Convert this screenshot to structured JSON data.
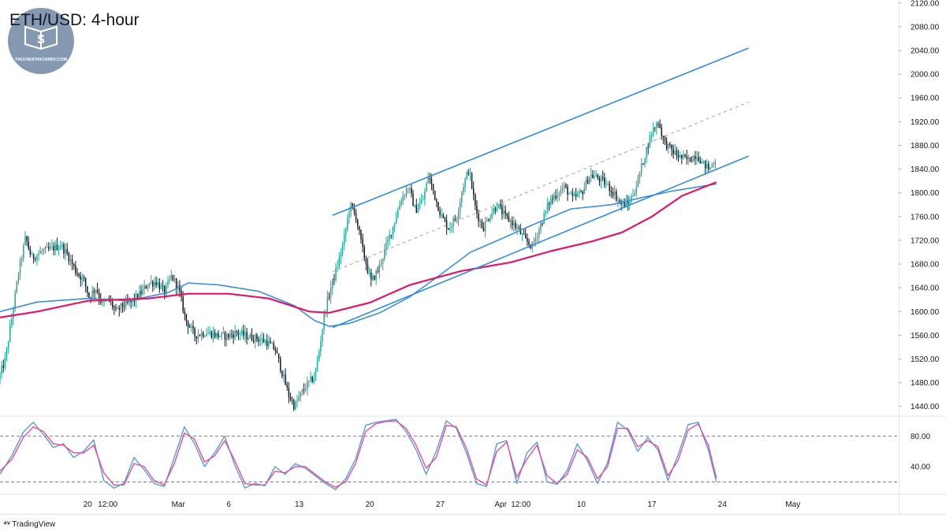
{
  "title": "ETH/USD: 4-hour",
  "watermark": "THUVIENTAICHINH.COM",
  "footer": "TradingView",
  "colors": {
    "bull": "#26a69a",
    "bear": "#131722",
    "ma_fast": "#3c8fd8",
    "ma_slow": "#e0156b",
    "channel": "#2f8be0",
    "stoch_k": "#5b9bd5",
    "stoch_d": "#e04f9c",
    "grid": "#e0e3eb"
  },
  "chart_data": [
    {
      "type": "candlestick",
      "title": "ETH/USD: 4-hour",
      "y_ticks": [
        "2120.00",
        "2080.00",
        "2040.00",
        "2000.00",
        "1960.00",
        "1920.00",
        "1880.00",
        "1840.00",
        "1800.00",
        "1760.00",
        "1720.00",
        "1680.00",
        "1640.00",
        "1600.00",
        "1560.00",
        "1520.00",
        "1480.00",
        "1440.00"
      ],
      "ylim": [
        1425,
        2125
      ],
      "x_ticks": [
        "20",
        "12:00",
        "Mar",
        "6",
        "13",
        "20",
        "27",
        "Apr",
        "12:00",
        "10",
        "17",
        "24",
        "May"
      ],
      "x_tick_days": [
        20,
        22,
        29,
        34,
        41,
        48,
        55,
        61,
        63,
        69,
        76,
        83,
        90
      ],
      "day_ref": "Feb 0",
      "xlim": [
        11.3,
        100.5
      ],
      "anchors": [
        [
          11.3,
          1485
        ],
        [
          12.0,
          1520
        ],
        [
          12.6,
          1585
        ],
        [
          13.3,
          1665
        ],
        [
          14.0,
          1725
        ],
        [
          14.6,
          1690
        ],
        [
          15.5,
          1700
        ],
        [
          16.5,
          1705
        ],
        [
          17.5,
          1712
        ],
        [
          18.2,
          1695
        ],
        [
          19.0,
          1668
        ],
        [
          19.8,
          1652
        ],
        [
          20.3,
          1625
        ],
        [
          21.0,
          1640
        ],
        [
          21.6,
          1612
        ],
        [
          22.3,
          1620
        ],
        [
          23.0,
          1598
        ],
        [
          23.6,
          1610
        ],
        [
          24.5,
          1615
        ],
        [
          25.5,
          1632
        ],
        [
          26.2,
          1648
        ],
        [
          27.0,
          1650
        ],
        [
          27.8,
          1632
        ],
        [
          28.5,
          1660
        ],
        [
          29.2,
          1638
        ],
        [
          29.9,
          1586
        ],
        [
          30.8,
          1560
        ],
        [
          32.0,
          1565
        ],
        [
          33.0,
          1560
        ],
        [
          34.0,
          1558
        ],
        [
          35.0,
          1565
        ],
        [
          36.0,
          1558
        ],
        [
          37.0,
          1555
        ],
        [
          38.0,
          1548
        ],
        [
          38.8,
          1535
        ],
        [
          39.5,
          1495
        ],
        [
          40.1,
          1460
        ],
        [
          40.7,
          1440
        ],
        [
          41.3,
          1460
        ],
        [
          42.0,
          1478
        ],
        [
          42.7,
          1490
        ],
        [
          43.2,
          1540
        ],
        [
          43.7,
          1600
        ],
        [
          44.3,
          1640
        ],
        [
          45.0,
          1680
        ],
        [
          45.6,
          1720
        ],
        [
          46.2,
          1780
        ],
        [
          46.8,
          1760
        ],
        [
          47.5,
          1700
        ],
        [
          48.3,
          1650
        ],
        [
          49.0,
          1670
        ],
        [
          49.6,
          1700
        ],
        [
          50.5,
          1745
        ],
        [
          51.3,
          1790
        ],
        [
          52.0,
          1810
        ],
        [
          52.7,
          1770
        ],
        [
          53.5,
          1790
        ],
        [
          54.0,
          1830
        ],
        [
          54.7,
          1790
        ],
        [
          55.3,
          1760
        ],
        [
          56.0,
          1740
        ],
        [
          56.8,
          1760
        ],
        [
          57.4,
          1810
        ],
        [
          58.0,
          1840
        ],
        [
          58.7,
          1770
        ],
        [
          59.4,
          1740
        ],
        [
          60.0,
          1760
        ],
        [
          60.8,
          1780
        ],
        [
          61.6,
          1760
        ],
        [
          62.3,
          1750
        ],
        [
          63.0,
          1735
        ],
        [
          63.6,
          1720
        ],
        [
          64.3,
          1710
        ],
        [
          65.1,
          1745
        ],
        [
          66.0,
          1785
        ],
        [
          66.8,
          1800
        ],
        [
          67.5,
          1810
        ],
        [
          68.3,
          1790
        ],
        [
          69.2,
          1800
        ],
        [
          70.0,
          1830
        ],
        [
          70.8,
          1825
        ],
        [
          71.6,
          1815
        ],
        [
          72.4,
          1800
        ],
        [
          73.0,
          1782
        ],
        [
          73.8,
          1780
        ],
        [
          74.6,
          1810
        ],
        [
          75.4,
          1860
        ],
        [
          76.2,
          1905
        ],
        [
          76.8,
          1920
        ],
        [
          77.4,
          1885
        ],
        [
          78.2,
          1870
        ],
        [
          79.0,
          1860
        ],
        [
          79.8,
          1855
        ],
        [
          80.6,
          1865
        ],
        [
          81.3,
          1848
        ],
        [
          81.9,
          1840
        ],
        [
          82.4,
          1856
        ]
      ],
      "ma_fast": [
        [
          11.3,
          1600
        ],
        [
          15,
          1616
        ],
        [
          20,
          1622
        ],
        [
          24,
          1618
        ],
        [
          28,
          1632
        ],
        [
          30,
          1648
        ],
        [
          33,
          1645
        ],
        [
          37,
          1634
        ],
        [
          40.5,
          1610
        ],
        [
          42.5,
          1585
        ],
        [
          44,
          1575
        ],
        [
          46,
          1580
        ],
        [
          49,
          1598
        ],
        [
          52,
          1625
        ],
        [
          55,
          1662
        ],
        [
          58,
          1700
        ],
        [
          61,
          1722
        ],
        [
          64,
          1745
        ],
        [
          68,
          1773
        ],
        [
          72,
          1780
        ],
        [
          75,
          1792
        ],
        [
          78,
          1803
        ],
        [
          82.4,
          1815
        ]
      ],
      "ma_slow": [
        [
          11.3,
          1590
        ],
        [
          15,
          1600
        ],
        [
          20,
          1618
        ],
        [
          26,
          1622
        ],
        [
          30,
          1630
        ],
        [
          34,
          1630
        ],
        [
          38,
          1622
        ],
        [
          42,
          1600
        ],
        [
          44,
          1598
        ],
        [
          48,
          1615
        ],
        [
          52,
          1645
        ],
        [
          57,
          1668
        ],
        [
          62,
          1683
        ],
        [
          66,
          1702
        ],
        [
          70,
          1718
        ],
        [
          73,
          1733
        ],
        [
          76,
          1760
        ],
        [
          79,
          1795
        ],
        [
          82.4,
          1818
        ]
      ],
      "channel": {
        "upper": [
          [
            44.3,
            1762
          ],
          [
            85.6,
            2044
          ]
        ],
        "lower": [
          [
            44.3,
            1573
          ],
          [
            85.6,
            1862
          ]
        ],
        "mid": [
          [
            44.3,
            1667
          ],
          [
            85.6,
            1953
          ]
        ]
      }
    },
    {
      "type": "line",
      "title": "Stochastic",
      "y_ticks": [
        "80.00",
        "40.00"
      ],
      "levels": [
        80,
        20
      ],
      "ylim": [
        5,
        105
      ],
      "series": [
        {
          "key": "k",
          "values": [
            [
              11.3,
              30
            ],
            [
              12.5,
              55
            ],
            [
              13.6,
              85
            ],
            [
              14.6,
              98
            ],
            [
              15.6,
              82
            ],
            [
              16.6,
              65
            ],
            [
              17.6,
              70
            ],
            [
              18.6,
              52
            ],
            [
              19.6,
              60
            ],
            [
              20.6,
              75
            ],
            [
              21.6,
              22
            ],
            [
              22.6,
              12
            ],
            [
              23.6,
              18
            ],
            [
              24.6,
              52
            ],
            [
              25.6,
              36
            ],
            [
              26.6,
              18
            ],
            [
              27.6,
              14
            ],
            [
              28.6,
              52
            ],
            [
              29.6,
              92
            ],
            [
              30.6,
              70
            ],
            [
              31.6,
              40
            ],
            [
              32.6,
              58
            ],
            [
              33.6,
              80
            ],
            [
              34.6,
              42
            ],
            [
              35.6,
              12
            ],
            [
              36.6,
              18
            ],
            [
              37.6,
              15
            ],
            [
              38.6,
              40
            ],
            [
              39.6,
              30
            ],
            [
              40.6,
              44
            ],
            [
              41.6,
              38
            ],
            [
              42.6,
              28
            ],
            [
              43.6,
              18
            ],
            [
              44.6,
              10
            ],
            [
              45.6,
              24
            ],
            [
              46.6,
              50
            ],
            [
              47.6,
              94
            ],
            [
              48.6,
              98
            ],
            [
              49.6,
              100
            ],
            [
              50.6,
              102
            ],
            [
              51.6,
              86
            ],
            [
              52.6,
              62
            ],
            [
              53.6,
              30
            ],
            [
              54.6,
              60
            ],
            [
              55.6,
              100
            ],
            [
              56.6,
              90
            ],
            [
              57.6,
              58
            ],
            [
              58.6,
              18
            ],
            [
              59.6,
              14
            ],
            [
              60.6,
              70
            ],
            [
              61.6,
              74
            ],
            [
              62.6,
              18
            ],
            [
              63.6,
              58
            ],
            [
              64.6,
              72
            ],
            [
              65.6,
              20
            ],
            [
              66.6,
              17
            ],
            [
              67.6,
              35
            ],
            [
              68.6,
              70
            ],
            [
              69.6,
              48
            ],
            [
              70.6,
              18
            ],
            [
              71.6,
              45
            ],
            [
              72.6,
              98
            ],
            [
              73.6,
              88
            ],
            [
              74.6,
              60
            ],
            [
              75.6,
              78
            ],
            [
              76.6,
              62
            ],
            [
              77.6,
              22
            ],
            [
              78.6,
              55
            ],
            [
              79.6,
              95
            ],
            [
              80.6,
              98
            ],
            [
              81.6,
              62
            ],
            [
              82.4,
              20
            ]
          ]
        },
        {
          "key": "d",
          "values": [
            [
              11.3,
              34
            ],
            [
              12.5,
              50
            ],
            [
              13.6,
              78
            ],
            [
              14.6,
              92
            ],
            [
              15.6,
              86
            ],
            [
              16.6,
              70
            ],
            [
              17.6,
              68
            ],
            [
              18.6,
              58
            ],
            [
              19.6,
              58
            ],
            [
              20.6,
              68
            ],
            [
              21.6,
              32
            ],
            [
              22.6,
              16
            ],
            [
              23.6,
              16
            ],
            [
              24.6,
              44
            ],
            [
              25.6,
              40
            ],
            [
              26.6,
              22
            ],
            [
              27.6,
              16
            ],
            [
              28.6,
              44
            ],
            [
              29.6,
              84
            ],
            [
              30.6,
              76
            ],
            [
              31.6,
              46
            ],
            [
              32.6,
              54
            ],
            [
              33.6,
              74
            ],
            [
              34.6,
              48
            ],
            [
              35.6,
              18
            ],
            [
              36.6,
              16
            ],
            [
              37.6,
              16
            ],
            [
              38.6,
              34
            ],
            [
              39.6,
              32
            ],
            [
              40.6,
              40
            ],
            [
              41.6,
              40
            ],
            [
              42.6,
              30
            ],
            [
              43.6,
              20
            ],
            [
              44.6,
              13
            ],
            [
              45.6,
              20
            ],
            [
              46.6,
              44
            ],
            [
              47.6,
              86
            ],
            [
              48.6,
              96
            ],
            [
              49.6,
              99
            ],
            [
              50.6,
              100
            ],
            [
              51.6,
              90
            ],
            [
              52.6,
              68
            ],
            [
              53.6,
              38
            ],
            [
              54.6,
              52
            ],
            [
              55.6,
              94
            ],
            [
              56.6,
              92
            ],
            [
              57.6,
              64
            ],
            [
              58.6,
              24
            ],
            [
              59.6,
              16
            ],
            [
              60.6,
              60
            ],
            [
              61.6,
              72
            ],
            [
              62.6,
              26
            ],
            [
              63.6,
              50
            ],
            [
              64.6,
              68
            ],
            [
              65.6,
              28
            ],
            [
              66.6,
              18
            ],
            [
              67.6,
              30
            ],
            [
              68.6,
              62
            ],
            [
              69.6,
              52
            ],
            [
              70.6,
              24
            ],
            [
              71.6,
              40
            ],
            [
              72.6,
              90
            ],
            [
              73.6,
              90
            ],
            [
              74.6,
              66
            ],
            [
              75.6,
              74
            ],
            [
              76.6,
              66
            ],
            [
              77.6,
              28
            ],
            [
              78.6,
              48
            ],
            [
              79.6,
              88
            ],
            [
              80.6,
              96
            ],
            [
              81.6,
              68
            ],
            [
              82.4,
              25
            ]
          ]
        }
      ]
    }
  ]
}
